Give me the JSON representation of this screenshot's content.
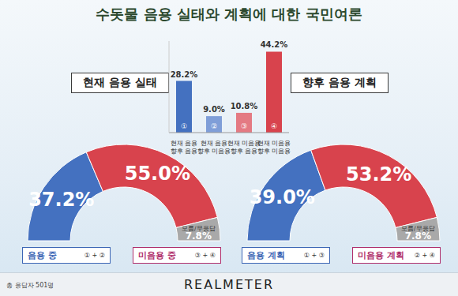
{
  "title": "수돗물 음용 실태와 계획에 대한 국민여론",
  "footer_note": "총 응답자 501명",
  "brand": "REALMETER",
  "chart_data": [
    {
      "type": "pie",
      "title": "현재 음용 실태",
      "categories": [
        "음용 중",
        "미음용 중",
        "모름/무응답"
      ],
      "category_notes": [
        "① + ②",
        "③ + ④",
        null
      ],
      "values": [
        37.2,
        55.0,
        7.8
      ],
      "value_labels": [
        "37.2%",
        "55.0%",
        "7.8%"
      ],
      "colors": [
        "#4471c0",
        "#d8434d",
        "#a9a9a9"
      ],
      "data_labels": true
    },
    {
      "type": "bar",
      "categories": [
        "현재 음용 향후 음용",
        "현재 음용 향후 미음용",
        "현재 미음용 향후 음용",
        "현재 미음용 향후 미음용"
      ],
      "bar_marks": [
        "①",
        "②",
        "③",
        "④"
      ],
      "values": [
        28.2,
        9.0,
        10.8,
        44.2
      ],
      "value_labels": [
        "28.2%",
        "9.0%",
        "10.8%",
        "44.2%"
      ],
      "colors": [
        "#4471c0",
        "#7f9ed8",
        "#e47a83",
        "#d8434d"
      ],
      "ylim": [
        0,
        50
      ],
      "data_labels": true,
      "tick_labels": "x"
    },
    {
      "type": "pie",
      "title": "향후 음용 계획",
      "categories": [
        "음용 계획",
        "미음용 계획",
        "모름/무응답"
      ],
      "category_notes": [
        "① + ③",
        "② + ④",
        null
      ],
      "values": [
        39.0,
        53.2,
        7.8
      ],
      "value_labels": [
        "39.0%",
        "53.2%",
        "7.8%"
      ],
      "colors": [
        "#4471c0",
        "#d8434d",
        "#a9a9a9"
      ],
      "data_labels": true
    }
  ]
}
